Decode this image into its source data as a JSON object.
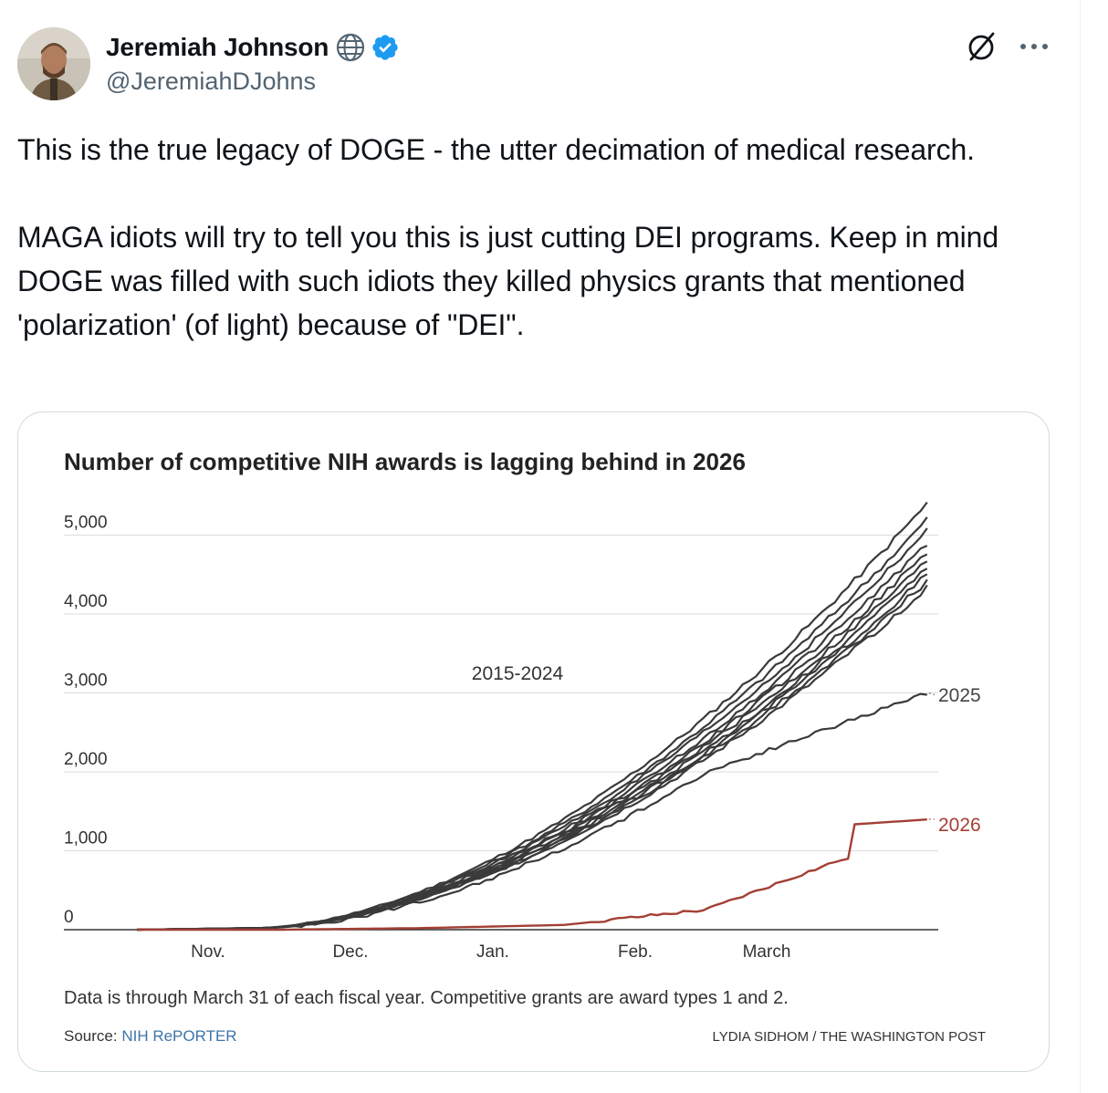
{
  "author": {
    "display_name": "Jeremiah Johnson",
    "handle": "@JeremiahDJohns",
    "verified": true,
    "affiliation_icon": "globe-icon"
  },
  "icons": {
    "grok": "grok-icon",
    "more": "more-icon",
    "verified": "verified-badge-icon"
  },
  "colors": {
    "verified_blue": "#1d9bf0",
    "text_primary": "#0f1419",
    "text_secondary": "#536471",
    "series_gray": "#3a3a3a",
    "series_2026": "#a33f34",
    "link_blue": "#3d74a8"
  },
  "tweet": {
    "paragraphs": [
      "This is the true legacy of DOGE - the utter decimation of medical research.",
      "MAGA idiots will try to tell you this is just cutting DEI programs. Keep in mind DOGE was filled with such idiots they killed physics grants that mentioned 'polarization' (of light) because of \"DEI\"."
    ]
  },
  "chart_data": {
    "type": "line",
    "title": "Number of competitive NIH awards is lagging behind in 2026",
    "y_ticks": [
      "5,000",
      "4,000",
      "3,000",
      "2,000",
      "1,000",
      "0"
    ],
    "y_tick_values": [
      5000,
      4000,
      3000,
      2000,
      1000,
      0
    ],
    "ylim": [
      0,
      5500
    ],
    "x_ticks": [
      "Nov.",
      "Dec.",
      "Jan.",
      "Feb.",
      "March"
    ],
    "x_range": [
      "Oct. 1",
      "March 31"
    ],
    "grid": "horizontal",
    "annotations": {
      "group_label": "2015-2024",
      "label_2025": "2025",
      "label_2026": "2026"
    },
    "series_endpoints_2015_2024": [
      5400,
      5200,
      5050,
      4900,
      4780,
      4680,
      4580,
      4500,
      4420,
      4340
    ],
    "series": [
      {
        "name": "2015-2024",
        "x_month_points": [
          0,
          1,
          2,
          3,
          4,
          5,
          6
        ],
        "values": [
          0,
          40,
          700,
          1420,
          2250,
          3700,
          5400
        ]
      },
      {
        "name": "2025",
        "x_month_points": [
          0,
          1,
          2,
          3,
          4,
          5,
          6
        ],
        "values": [
          0,
          30,
          650,
          1380,
          2200,
          2550,
          3000
        ]
      },
      {
        "name": "2026",
        "x_month_points": [
          0,
          1,
          2,
          3,
          4,
          5,
          6
        ],
        "values": [
          0,
          0,
          20,
          60,
          250,
          920,
          1400
        ]
      }
    ],
    "footnote": "Data is through March 31 of each fiscal year. Competitive grants are award types 1 and 2.",
    "source_label": "Source: ",
    "source_link": "NIH RePORTER",
    "credit": "LYDIA SIDHOM / THE WASHINGTON POST"
  }
}
